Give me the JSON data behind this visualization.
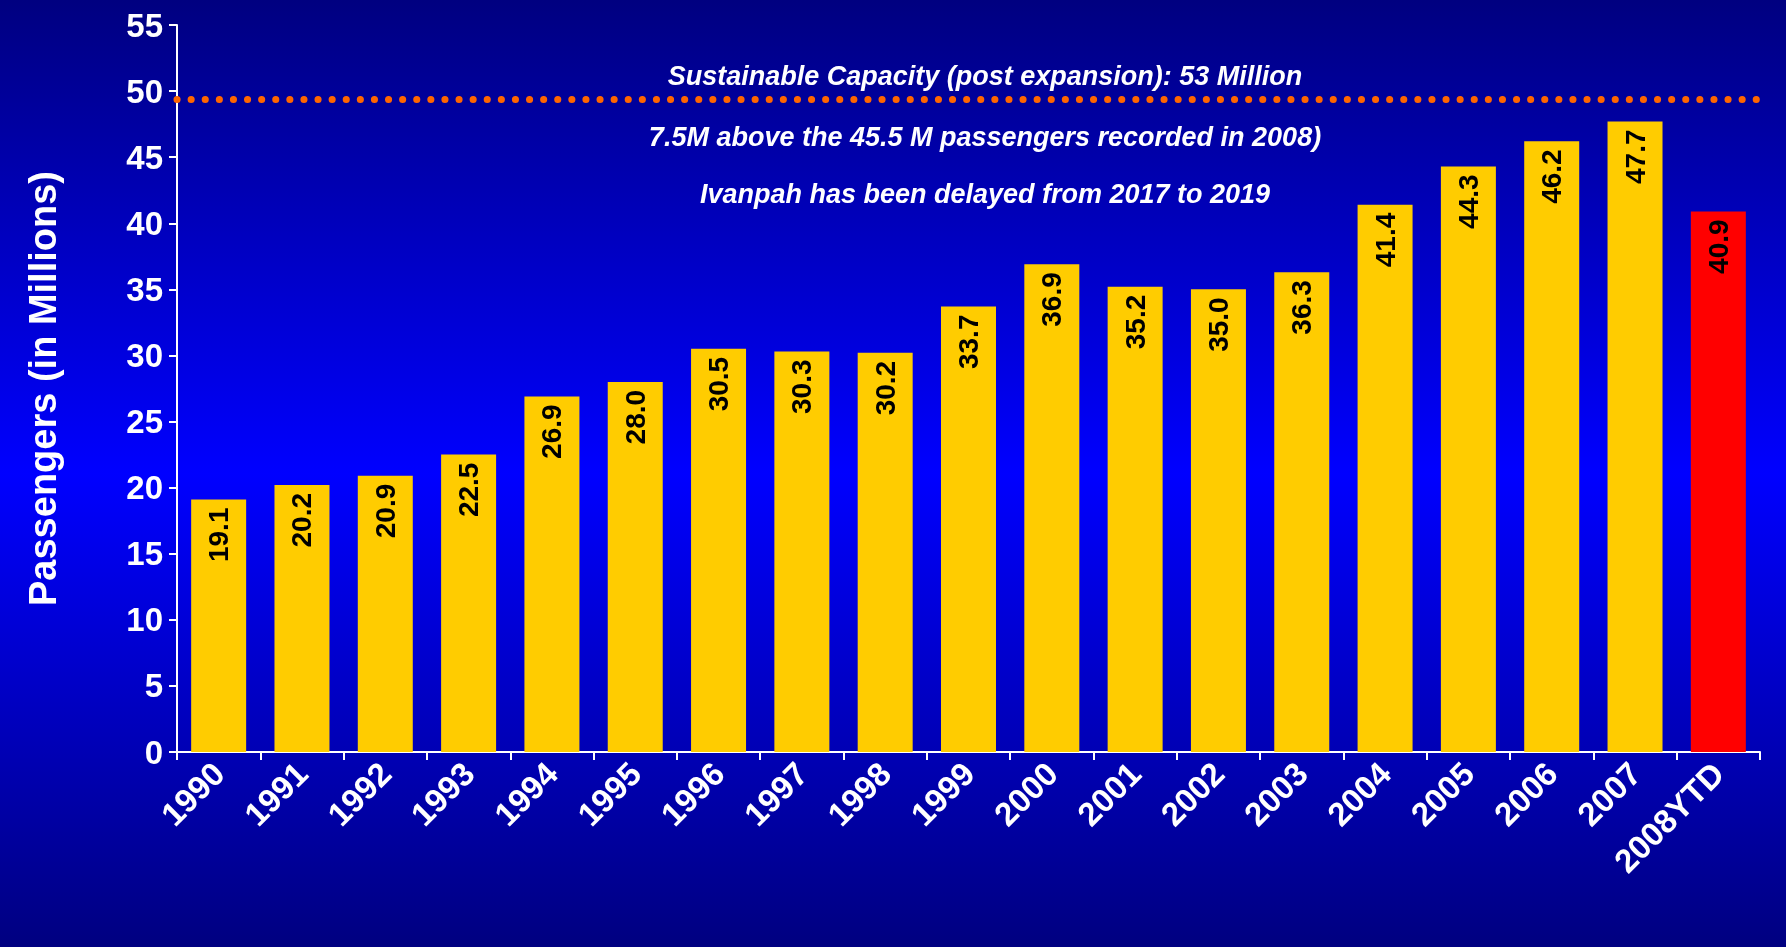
{
  "chart_data": {
    "type": "bar",
    "ylabel": "Passengers (in Millions)",
    "categories": [
      "1990",
      "1991",
      "1992",
      "1993",
      "1994",
      "1995",
      "1996",
      "1997",
      "1998",
      "1999",
      "2000",
      "2001",
      "2002",
      "2003",
      "2004",
      "2005",
      "2006",
      "2007",
      "2008YTD"
    ],
    "values": [
      19.1,
      20.2,
      20.9,
      22.5,
      26.9,
      28.0,
      30.5,
      30.3,
      30.2,
      33.7,
      36.9,
      35.2,
      35.0,
      36.3,
      41.4,
      44.3,
      46.2,
      47.7,
      40.9
    ],
    "value_labels": [
      "19.1",
      "20.2",
      "20.9",
      "22.5",
      "26.9",
      "28.0",
      "30.5",
      "30.3",
      "30.2",
      "33.7",
      "36.9",
      "35.2",
      "35.0",
      "36.3",
      "41.4",
      "44.3",
      "46.2",
      "47.7",
      "40.9"
    ],
    "colors": [
      "#ffcc00",
      "#ffcc00",
      "#ffcc00",
      "#ffcc00",
      "#ffcc00",
      "#ffcc00",
      "#ffcc00",
      "#ffcc00",
      "#ffcc00",
      "#ffcc00",
      "#ffcc00",
      "#ffcc00",
      "#ffcc00",
      "#ffcc00",
      "#ffcc00",
      "#ffcc00",
      "#ffcc00",
      "#ffcc00",
      "#ff0000"
    ],
    "ylim": [
      0,
      55
    ],
    "yticks": [
      0,
      5,
      10,
      15,
      20,
      25,
      30,
      35,
      40,
      45,
      50,
      55
    ],
    "grid": false,
    "ref_lines": [
      {
        "axis": "y",
        "value": 49.4,
        "color": "#ff6600",
        "line_style": "dotted"
      }
    ],
    "annotations": [
      "Sustainable Capacity (post expansion): 53 Million",
      "7.5M above the 45.5 M passengers recorded in 2008)",
      "Ivanpah has been delayed from 2017 to 2019"
    ]
  }
}
